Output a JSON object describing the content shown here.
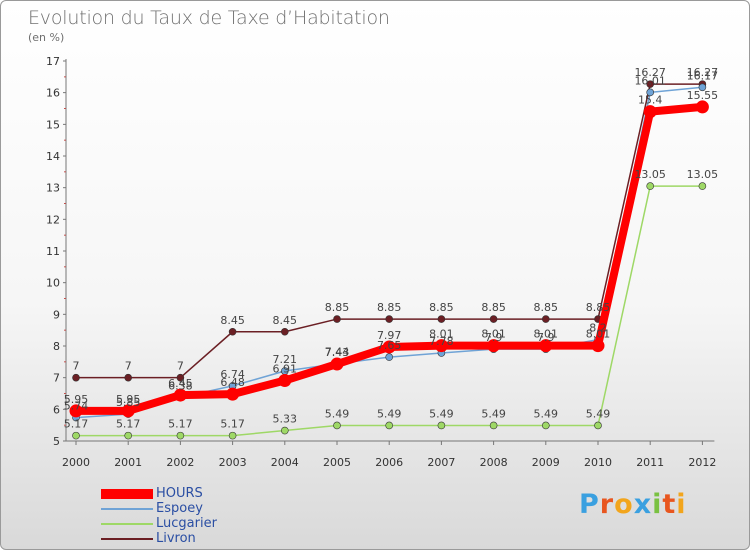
{
  "header": {
    "title": "Evolution du Taux de Taxe d’Habitation",
    "unit": "(en %)"
  },
  "chart_data": {
    "type": "line",
    "title": "Evolution du Taux de Taxe d’Habitation",
    "ylabel": "(en %)",
    "xlabel": "",
    "x": [
      "2000",
      "2001",
      "2002",
      "2003",
      "2004",
      "2005",
      "2006",
      "2007",
      "2008",
      "2009",
      "2010",
      "2011",
      "2012"
    ],
    "ylim": [
      5,
      17
    ],
    "yticks": [
      5,
      6,
      7,
      8,
      9,
      10,
      11,
      12,
      13,
      14,
      15,
      16,
      17
    ],
    "grid": false,
    "legend_position": "bottom-left",
    "series": [
      {
        "name": "Livron",
        "color": "#6b1f24",
        "values": [
          7,
          7,
          7,
          8.45,
          8.45,
          8.85,
          8.85,
          8.85,
          8.85,
          8.85,
          8.85,
          16.27,
          16.27
        ],
        "labels": [
          "7",
          "7",
          "7",
          "8.45",
          "8.45",
          "8.85",
          "8.85",
          "8.85",
          "8.85",
          "8.85",
          "8.85",
          "16.27",
          "16.27"
        ]
      },
      {
        "name": "Espoey",
        "color": "#6fa3d6",
        "values": [
          5.74,
          5.85,
          6.38,
          6.74,
          7.21,
          7.44,
          7.65,
          7.78,
          7.9,
          7.9,
          8.2,
          16.01,
          16.17
        ],
        "labels": [
          "5.74",
          "5.85",
          "6.38",
          "6.74",
          "7.21",
          "7.44",
          "7.65",
          "7.78",
          "7.9",
          "7.9",
          "8.2",
          "16.01",
          "16.17"
        ]
      },
      {
        "name": "Lucgarier",
        "color": "#9ed866",
        "values": [
          5.17,
          5.17,
          5.17,
          5.17,
          5.33,
          5.49,
          5.49,
          5.49,
          5.49,
          5.49,
          5.49,
          13.05,
          13.05
        ],
        "labels": [
          "5.17",
          "5.17",
          "5.17",
          "5.17",
          "5.33",
          "5.49",
          "5.49",
          "5.49",
          "5.49",
          "5.49",
          "5.49",
          "13.05",
          "13.05"
        ]
      },
      {
        "name": "HOURS",
        "color": "#ff0000",
        "values": [
          5.95,
          5.95,
          6.45,
          6.48,
          6.91,
          7.43,
          7.97,
          8.01,
          8.01,
          8.01,
          8.01,
          15.4,
          15.55
        ],
        "labels": [
          "5.95",
          "5.95",
          "6.45",
          "6.48",
          "6.91",
          "7.43",
          "7.97",
          "8.01",
          "8.01",
          "8.01",
          "8.01",
          "15.4",
          "15.55"
        ]
      }
    ]
  },
  "legend": {
    "items": [
      {
        "label": "HOURS",
        "color": "#ff0000"
      },
      {
        "label": "Espoey",
        "color": "#6fa3d6"
      },
      {
        "label": "Lucgarier",
        "color": "#9ed866"
      },
      {
        "label": "Livron",
        "color": "#6b1f24"
      }
    ]
  },
  "logo": {
    "text": "Proxiti",
    "letter_colors": [
      "#3aa0e0",
      "#e8561f",
      "#f2a51c",
      "#3aa0e0",
      "#7ac142",
      "#e8561f",
      "#f2a51c"
    ]
  }
}
